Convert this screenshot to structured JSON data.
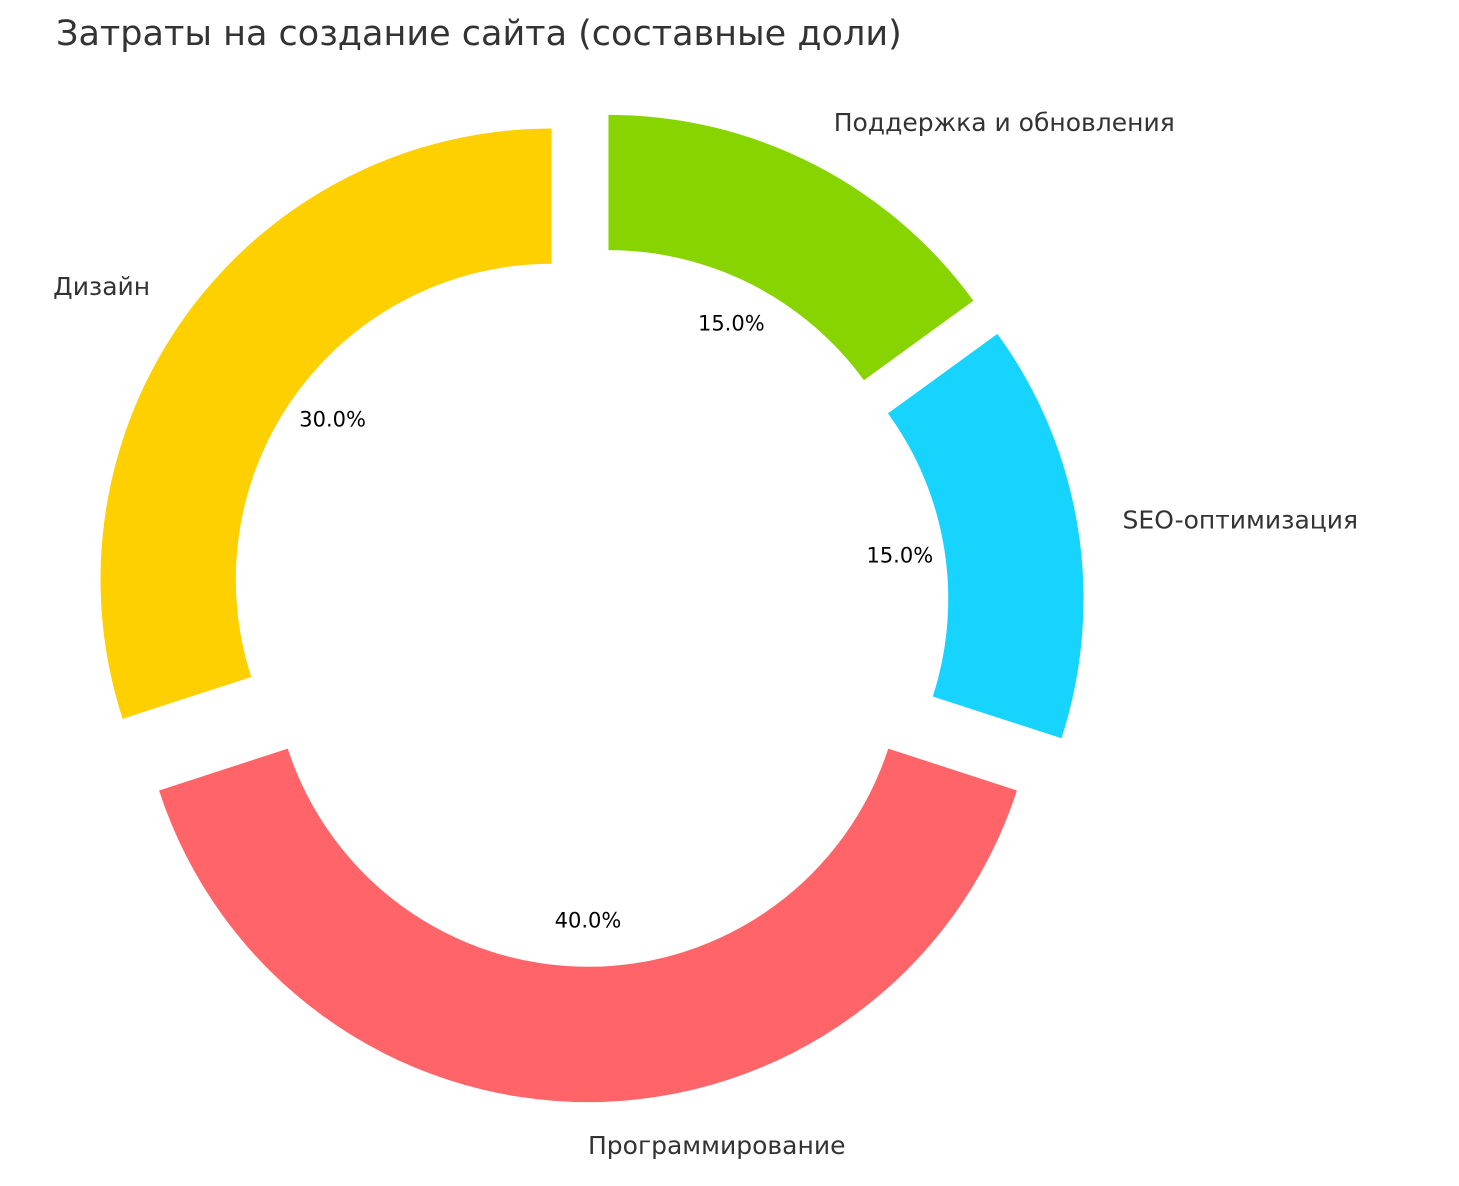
{
  "chart_data": {
    "type": "pie",
    "variant": "donut",
    "title": "Затраты на создание сайта (составные доли)",
    "categories": [
      "Дизайн",
      "Программирование",
      "SEO-оптимизация",
      "Поддержка и обновления"
    ],
    "values": [
      30,
      40,
      15,
      15
    ],
    "percent_labels": [
      "30.0%",
      "40.0%",
      "15.0%",
      "15.0%"
    ],
    "colors": [
      "#FFD000",
      "#FF6469",
      "#17D4FE",
      "#88D400"
    ],
    "start_angle_deg": 90,
    "direction": "counterclockwise",
    "exploded": true,
    "legend": "none"
  }
}
